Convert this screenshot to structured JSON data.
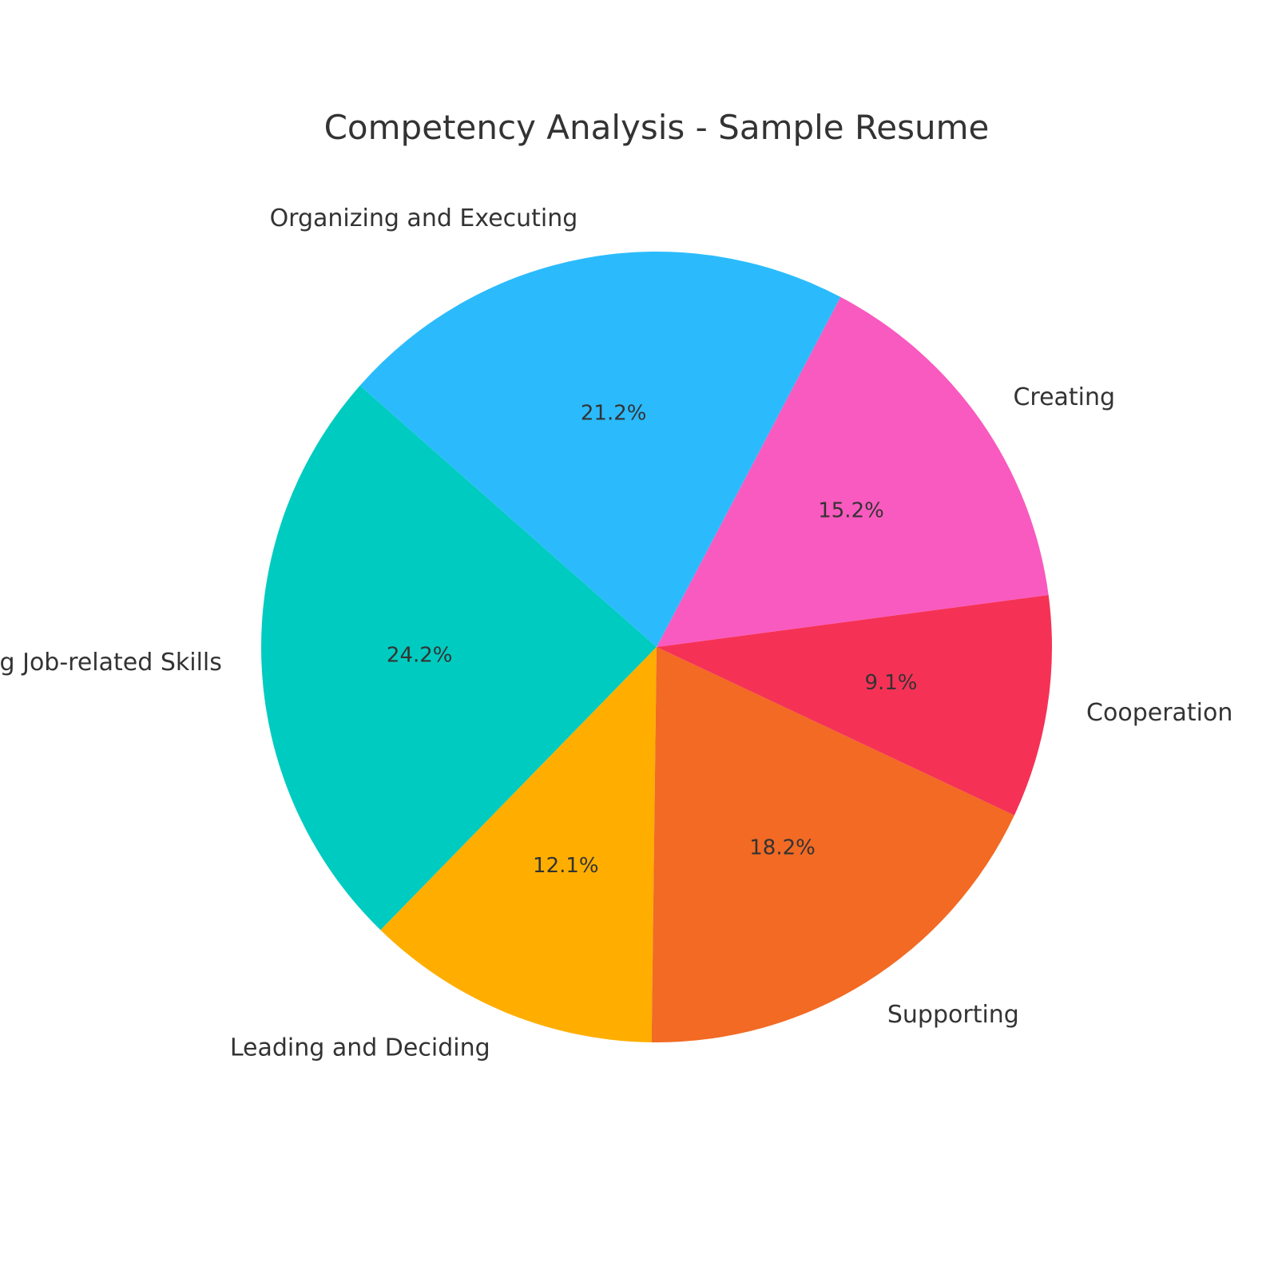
{
  "chart_data": {
    "type": "pie",
    "title": "Competency Analysis - Sample Resume",
    "slices": [
      {
        "label": "Displaying and Demonstrating Job-related Skills",
        "value": 24.2,
        "pct_label": "24.2%",
        "color": "#00CBC0"
      },
      {
        "label": "Leading and Deciding",
        "value": 12.1,
        "pct_label": "12.1%",
        "color": "#FFAE00"
      },
      {
        "label": "Supporting",
        "value": 18.2,
        "pct_label": "18.2%",
        "color": "#F26A24"
      },
      {
        "label": "Cooperation",
        "value": 9.1,
        "pct_label": "9.1%",
        "color": "#F53256"
      },
      {
        "label": "Creating",
        "value": 15.2,
        "pct_label": "15.2%",
        "color": "#F95ABF"
      },
      {
        "label": "Organizing and Executing",
        "value": 21.2,
        "pct_label": "21.2%",
        "color": "#2BBBFD"
      }
    ]
  }
}
